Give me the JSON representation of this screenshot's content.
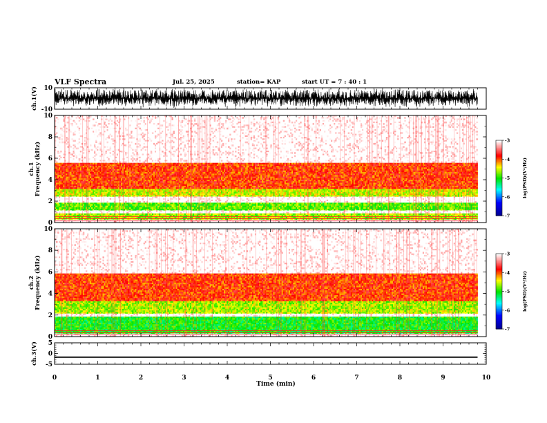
{
  "header": {
    "title": "VLF Spectra",
    "date": "Jul. 25, 2025",
    "station": "station= KAP",
    "start_ut": "start  UT =   7 : 40 : 1"
  },
  "chart_data": [
    {
      "id": "ch1-waveform",
      "type": "line",
      "ylabel": "ch.1(V)",
      "ylim": [
        -10,
        10
      ],
      "yticks": [
        "10",
        "-10"
      ],
      "xlim": [
        0,
        10
      ],
      "data_x_end": 9.8,
      "description_of_trace": "dense broadband noise, amplitude mostly within -8 to 9 V",
      "amplitude_range": [
        -8,
        9
      ]
    },
    {
      "id": "ch1-spectrogram",
      "type": "heatmap",
      "ylabel": "ch.1\nFrequency  (kHz)",
      "ylim": [
        0,
        10
      ],
      "yticks": [
        "0",
        "2",
        "4",
        "6",
        "8",
        "10"
      ],
      "xlim": [
        0,
        10
      ],
      "data_x_end": 9.8,
      "bands_khz": [
        {
          "range": [
            0.3,
            0.9
          ],
          "level": -4.6
        },
        {
          "range": [
            1.1,
            1.8
          ],
          "level": -4.8
        },
        {
          "range": [
            2.4,
            3.2
          ],
          "level": -4.5
        },
        {
          "range": [
            3.2,
            5.5
          ],
          "level": -3.9
        }
      ],
      "colorbar": {
        "label": "log(PSD)(V²/Hz)",
        "range": [
          -7,
          -3
        ],
        "ticks": [
          "-3",
          "-4",
          "-5",
          "-6",
          "-7"
        ]
      }
    },
    {
      "id": "ch2-spectrogram",
      "type": "heatmap",
      "ylabel": "ch.2\nFrequency  (kHz)",
      "ylim": [
        0,
        10
      ],
      "yticks": [
        "0",
        "2",
        "4",
        "6",
        "8",
        "10"
      ],
      "xlim": [
        0,
        10
      ],
      "data_x_end": 9.8,
      "bands_khz": [
        {
          "range": [
            0.3,
            1.8
          ],
          "level": -5.0
        },
        {
          "range": [
            2.2,
            3.3
          ],
          "level": -4.6
        },
        {
          "range": [
            3.3,
            5.8
          ],
          "level": -3.9
        }
      ],
      "colorbar": {
        "label": "log(PSD)(V²/Hz)",
        "range": [
          -7,
          -3
        ],
        "ticks": [
          "-3",
          "-4",
          "-5",
          "-6",
          "-7"
        ]
      }
    },
    {
      "id": "ch3-waveform",
      "type": "line",
      "ylabel": "ch.3(V)",
      "ylim": [
        -5,
        5
      ],
      "yticks": [
        "5",
        "0",
        "-5"
      ],
      "xlim": [
        0,
        10
      ],
      "data_x_end": 9.8,
      "amplitude_range": [
        -2.0,
        -1.4
      ],
      "xlabel": "Time  (min)",
      "xticks": [
        "0",
        "1",
        "2",
        "3",
        "4",
        "5",
        "6",
        "7",
        "8",
        "9",
        "10"
      ]
    }
  ]
}
